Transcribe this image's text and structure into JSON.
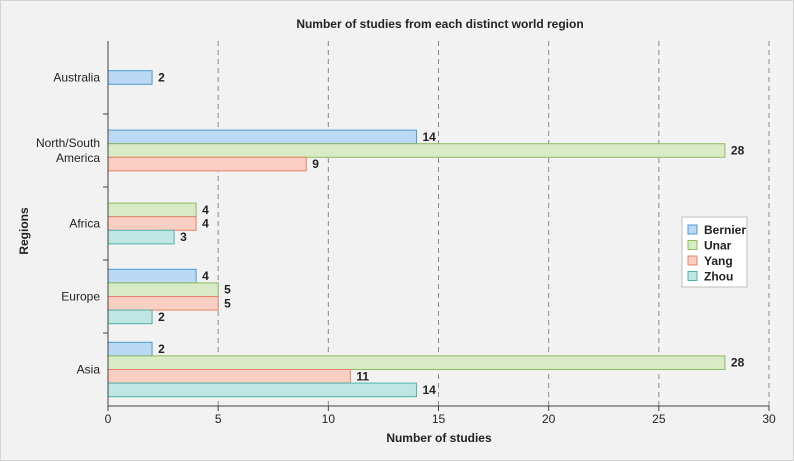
{
  "chart_data": {
    "type": "bar",
    "orientation": "horizontal",
    "title": "Number of studies from each distinct world region",
    "xlabel": "Number of studies",
    "ylabel": "Regions",
    "xlim": [
      0,
      30
    ],
    "xticks": [
      0,
      5,
      10,
      15,
      20,
      25,
      30
    ],
    "grid": "vertical dashed",
    "legend_position": "right",
    "categories": [
      {
        "lines": [
          "Australia"
        ]
      },
      {
        "lines": [
          "North/South",
          "America"
        ]
      },
      {
        "lines": [
          "Africa"
        ]
      },
      {
        "lines": [
          "Europe"
        ]
      },
      {
        "lines": [
          "Asia"
        ]
      }
    ],
    "series": [
      {
        "name": "Bernier",
        "fill": "#bcd9f4",
        "stroke": "#4a9ad8",
        "values": [
          2,
          14,
          null,
          4,
          2
        ]
      },
      {
        "name": "Unar",
        "fill": "#d9ebc6",
        "stroke": "#8dbb5e",
        "values": [
          null,
          28,
          4,
          5,
          28
        ]
      },
      {
        "name": "Yang",
        "fill": "#f9cfc3",
        "stroke": "#e8836a",
        "values": [
          null,
          9,
          4,
          5,
          11
        ]
      },
      {
        "name": "Zhou",
        "fill": "#bfe6e2",
        "stroke": "#4fb3aa",
        "values": [
          null,
          null,
          3,
          2,
          14
        ]
      }
    ]
  }
}
